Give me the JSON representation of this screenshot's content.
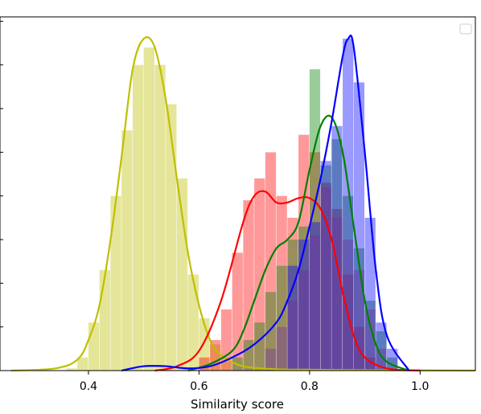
{
  "chart_data": {
    "type": "histogram",
    "title": "",
    "xlabel": "Similarity score",
    "ylabel": "",
    "xlim": [
      0.24,
      1.1
    ],
    "ylim": [
      0,
      8.1
    ],
    "x_ticks": [
      0.4,
      0.6,
      0.8,
      1.0
    ],
    "x_tick_labels": [
      "0.4",
      "0.6",
      "0.8",
      "1.0"
    ],
    "grid": false,
    "legend": {
      "placement": "top-right",
      "entries": []
    },
    "bin_width": 0.02,
    "series": [
      {
        "color": "#bfbf00",
        "bins_x": [
          0.36,
          0.38,
          0.4,
          0.42,
          0.44,
          0.46,
          0.48,
          0.5,
          0.52,
          0.54,
          0.56,
          0.58,
          0.6,
          0.62,
          0.64
        ],
        "bins_y": [
          0.05,
          0.3,
          1.1,
          2.3,
          4.0,
          5.5,
          7.0,
          7.4,
          7.0,
          6.1,
          4.4,
          2.2,
          1.2,
          0.6,
          0.2
        ],
        "kde_x": [
          0.26,
          0.34,
          0.38,
          0.4,
          0.42,
          0.44,
          0.46,
          0.48,
          0.5,
          0.52,
          0.54,
          0.56,
          0.58,
          0.6,
          0.62,
          0.64,
          0.68,
          0.74,
          0.8,
          0.9,
          1.1
        ],
        "kde_y": [
          0,
          0.05,
          0.25,
          0.7,
          1.5,
          3.0,
          4.9,
          6.9,
          7.6,
          7.4,
          6.2,
          4.4,
          2.7,
          1.5,
          0.7,
          0.35,
          0.1,
          0.03,
          0.02,
          0.01,
          0
        ]
      },
      {
        "color": "#ff0000",
        "bins_x": [
          0.6,
          0.62,
          0.64,
          0.66,
          0.68,
          0.7,
          0.72,
          0.74,
          0.76,
          0.78,
          0.8,
          0.82,
          0.84,
          0.86,
          0.88,
          0.9
        ],
        "bins_y": [
          0.3,
          0.7,
          1.4,
          2.7,
          3.9,
          4.4,
          5.0,
          4.0,
          3.5,
          5.4,
          5.0,
          4.3,
          3.7,
          2.2,
          1.0,
          0.3
        ],
        "kde_x": [
          0.52,
          0.56,
          0.6,
          0.64,
          0.68,
          0.7,
          0.72,
          0.74,
          0.76,
          0.78,
          0.8,
          0.82,
          0.84,
          0.86,
          0.88,
          0.9,
          0.94,
          1.0
        ],
        "kde_y": [
          0,
          0.1,
          0.45,
          1.6,
          3.4,
          4.0,
          4.1,
          3.85,
          3.85,
          3.95,
          3.95,
          3.7,
          3.0,
          1.8,
          0.8,
          0.3,
          0.05,
          0
        ]
      },
      {
        "color": "#008000",
        "bins_x": [
          0.66,
          0.68,
          0.7,
          0.72,
          0.74,
          0.76,
          0.78,
          0.8,
          0.82,
          0.84,
          0.86,
          0.88,
          0.9,
          0.92,
          0.94
        ],
        "bins_y": [
          0.3,
          0.7,
          1.1,
          1.8,
          2.4,
          3.0,
          3.3,
          6.9,
          4.7,
          5.3,
          4.0,
          2.8,
          1.6,
          0.9,
          0.3
        ],
        "kde_x": [
          0.58,
          0.62,
          0.66,
          0.68,
          0.7,
          0.72,
          0.74,
          0.76,
          0.78,
          0.8,
          0.82,
          0.84,
          0.86,
          0.88,
          0.9,
          0.92,
          0.94,
          0.98
        ],
        "kde_y": [
          0,
          0.15,
          0.45,
          0.9,
          1.6,
          2.3,
          2.8,
          3.0,
          3.4,
          4.6,
          5.6,
          5.8,
          5.0,
          3.3,
          1.6,
          0.6,
          0.2,
          0
        ]
      },
      {
        "color": "#0000ff",
        "bins_x": [
          0.76,
          0.78,
          0.8,
          0.82,
          0.84,
          0.86,
          0.88,
          0.9,
          0.92,
          0.94
        ],
        "bins_y": [
          2.4,
          3.0,
          3.4,
          4.8,
          5.6,
          7.6,
          6.6,
          3.5,
          1.1,
          0.5
        ],
        "kde_x": [
          0.46,
          0.5,
          0.54,
          0.58,
          0.62,
          0.66,
          0.7,
          0.74,
          0.76,
          0.78,
          0.8,
          0.82,
          0.84,
          0.86,
          0.87,
          0.88,
          0.9,
          0.92,
          0.94,
          0.98
        ],
        "kde_y": [
          0,
          0.1,
          0.1,
          0.05,
          0.1,
          0.3,
          0.6,
          1.1,
          1.6,
          2.3,
          3.3,
          4.4,
          5.7,
          7.2,
          7.6,
          7.4,
          5.0,
          2.3,
          0.8,
          0
        ]
      },
      {
        "color": "#7030a0",
        "bins_x": [
          0.72,
          0.74,
          0.76,
          0.78,
          0.8,
          0.82,
          0.84,
          0.86,
          0.88,
          0.9,
          0.92
        ],
        "bins_y": [
          0.5,
          1.0,
          1.6,
          2.3,
          3.1,
          4.2,
          3.5,
          3.0,
          2.3,
          1.4,
          0.5
        ],
        "kde_x": [],
        "kde_y": []
      }
    ]
  }
}
